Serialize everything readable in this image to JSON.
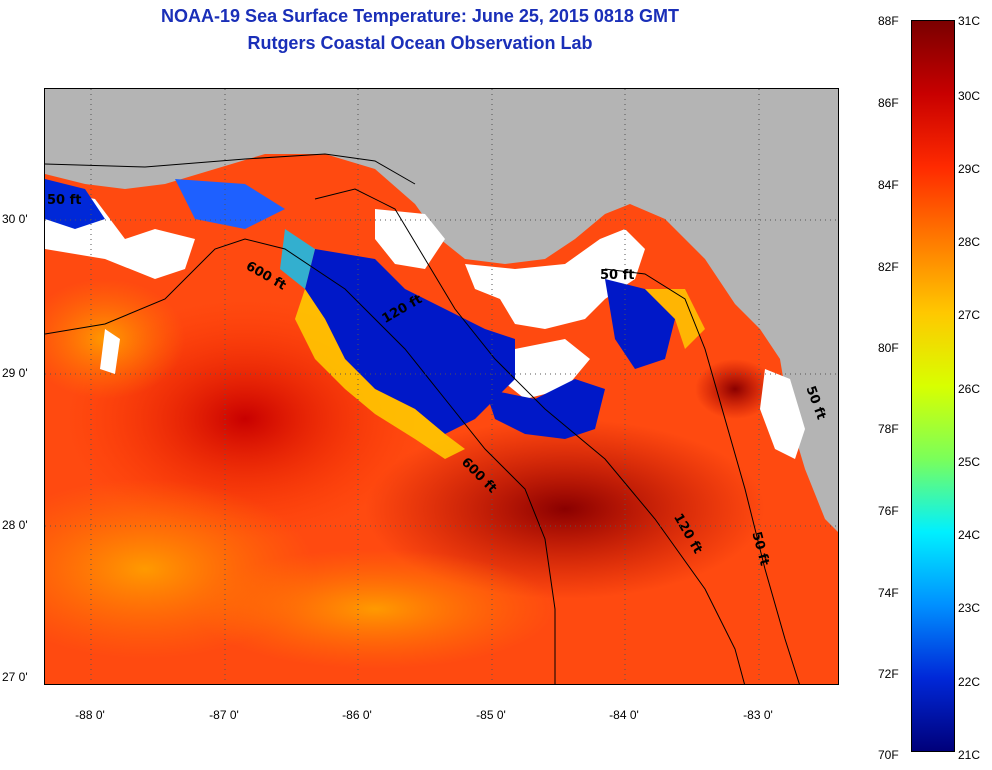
{
  "title": "NOAA-19 Sea Surface Temperature:  June 25, 2015 0818 GMT",
  "subtitle": "Rutgers Coastal Ocean Observation Lab",
  "map": {
    "lat_labels": [
      "30 0'",
      "29 0'",
      "28 0'",
      "27 0'"
    ],
    "lon_labels": [
      "-88 0'",
      "-87 0'",
      "-86 0'",
      "-85 0'",
      "-84 0'",
      "-83 0'"
    ],
    "contour_labels": [
      "600 ft",
      "600 ft",
      "120 ft",
      "50 ft",
      "50 ft",
      "120 ft",
      "50 ft",
      "50 ft"
    ],
    "land_color": "#b4b4b4",
    "cloud_color": "#ffffff"
  },
  "colorbar": {
    "fahrenheit_labels": [
      "88F",
      "86F",
      "84F",
      "82F",
      "80F",
      "78F",
      "76F",
      "74F",
      "72F",
      "70F"
    ],
    "celsius_labels": [
      "31C",
      "30C",
      "29C",
      "28C",
      "27C",
      "26C",
      "25C",
      "24C",
      "23C",
      "22C",
      "21C"
    ],
    "range_celsius": [
      21,
      31
    ],
    "colors_top_to_bottom": [
      "#7a0000",
      "#c80000",
      "#ff2a00",
      "#ff7a00",
      "#ffc800",
      "#d8ff00",
      "#7aff5a",
      "#00f0ff",
      "#0090ff",
      "#0028d8",
      "#00007a"
    ]
  }
}
